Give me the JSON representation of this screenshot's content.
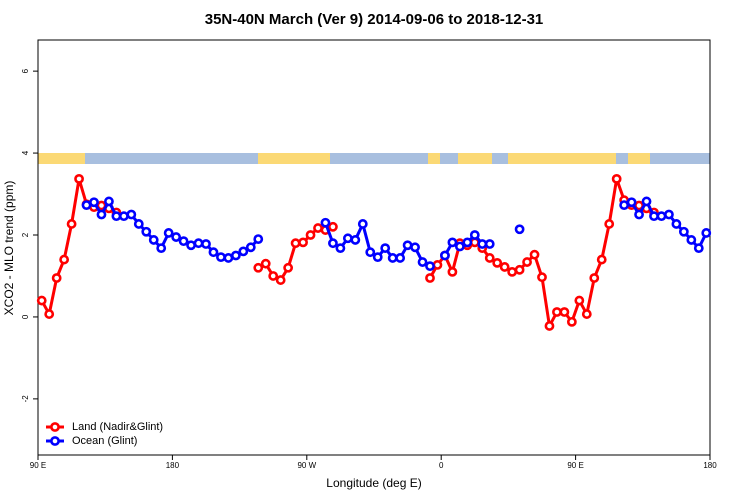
{
  "chart_data": {
    "type": "line",
    "title": "35N-40N March (Ver 9)   2014-09-06 to 2018-12-31",
    "x_label": "Longitude (deg E)",
    "y_label": "XCO2 - MLO trend (ppm)",
    "xlim": [
      90,
      540
    ],
    "ylim": [
      -3.37,
      6.76
    ],
    "xticks": [
      {
        "value": 90,
        "label": "90 E"
      },
      180,
      {
        "value": 270,
        "label": "90 W"
      },
      {
        "value": 360,
        "label": "0"
      },
      {
        "value": 450,
        "label": "90 E"
      },
      {
        "value": 540,
        "label": "180"
      }
    ],
    "yticks": [
      -2,
      0,
      2,
      4,
      6
    ],
    "legend": "bottom-left",
    "x": [
      92.5,
      97.5,
      102.5,
      107.5,
      112.5,
      117.5,
      122.5,
      127.5,
      132.5,
      137.5,
      142.5,
      147.5,
      152.5,
      157.5,
      162.5,
      167.5,
      172.5,
      177.5,
      182.5,
      187.5,
      192.5,
      197.5,
      202.5,
      207.5,
      212.5,
      217.5,
      222.5,
      227.5,
      232.5,
      237.5,
      242.5,
      247.5,
      252.5,
      257.5,
      262.5,
      267.5,
      272.5,
      277.5,
      282.5,
      287.5,
      292.5,
      297.5,
      302.5,
      307.5,
      312.5,
      317.5,
      322.5,
      327.5,
      332.5,
      337.5,
      342.5,
      347.5,
      352.5,
      357.5,
      362.5,
      367.5,
      372.5,
      377.5,
      382.5,
      387.5,
      392.5,
      397.5,
      402.5,
      407.5,
      412.5,
      417.5,
      422.5,
      427.5,
      432.5,
      437.5,
      442.5,
      447.5,
      452.5,
      457.5,
      462.5,
      467.5,
      472.5,
      477.5,
      482.5,
      487.5,
      492.5,
      497.5,
      502.5,
      507.5,
      512.5,
      517.5,
      522.5,
      527.5,
      532.5,
      537.5
    ],
    "series": [
      {
        "name": "Land (Nadir&Glint)",
        "color": "#ff0000",
        "values": [
          0.4,
          0.07,
          0.95,
          1.4,
          2.27,
          3.37,
          2.75,
          2.68,
          2.72,
          2.65,
          2.55,
          null,
          null,
          null,
          null,
          null,
          null,
          null,
          null,
          null,
          null,
          null,
          null,
          null,
          null,
          null,
          null,
          null,
          null,
          1.2,
          1.3,
          1.0,
          0.9,
          1.2,
          1.8,
          1.82,
          2.0,
          2.17,
          2.12,
          2.2,
          null,
          null,
          null,
          null,
          null,
          null,
          null,
          null,
          null,
          null,
          null,
          null,
          0.95,
          1.27,
          1.5,
          1.1,
          1.8,
          1.75,
          1.82,
          1.68,
          1.44,
          1.32,
          1.22,
          1.1,
          1.15,
          1.34,
          1.52,
          0.97,
          -0.22,
          0.12,
          0.12,
          -0.12,
          0.4,
          0.07,
          0.95,
          1.4,
          2.27,
          3.37,
          2.85,
          2.73,
          2.72,
          2.65,
          2.55,
          null,
          null,
          null,
          null,
          null,
          null,
          null
        ]
      },
      {
        "name": "Ocean (Glint)",
        "color": "#0000ff",
        "values": [
          null,
          null,
          null,
          null,
          null,
          null,
          2.73,
          2.8,
          2.5,
          2.82,
          2.46,
          2.46,
          2.5,
          2.27,
          2.08,
          1.88,
          1.68,
          2.05,
          1.95,
          1.85,
          1.75,
          1.8,
          1.78,
          1.58,
          1.46,
          1.44,
          1.5,
          1.6,
          1.7,
          1.9,
          null,
          null,
          null,
          null,
          null,
          null,
          null,
          null,
          2.3,
          1.8,
          1.68,
          1.92,
          1.88,
          2.27,
          1.58,
          1.46,
          1.68,
          1.44,
          1.44,
          1.75,
          1.7,
          1.34,
          1.24,
          null,
          1.5,
          1.82,
          1.72,
          1.82,
          2.0,
          1.78,
          1.78,
          null,
          null,
          null,
          2.14,
          null,
          null,
          null,
          null,
          null,
          null,
          null,
          null,
          null,
          null,
          null,
          null,
          null,
          2.73,
          2.8,
          2.5,
          2.82,
          2.46,
          2.46,
          2.5,
          2.27,
          2.08,
          1.88,
          1.68,
          2.05
        ]
      }
    ]
  }
}
